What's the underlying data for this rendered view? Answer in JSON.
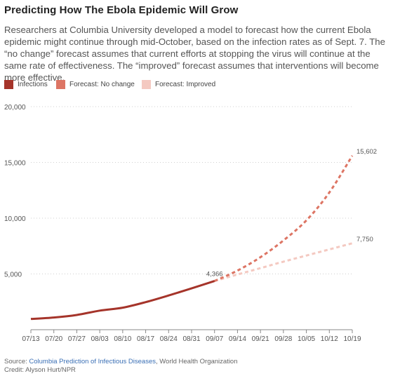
{
  "title": "Predicting How The Ebola Epidemic Will Grow",
  "subtitle": "Researchers at Columbia University developed a model to forecast how the current Ebola epidemic might continue through mid-October, based on the infection rates as of Sept. 7. The “no change” forecast assumes that current efforts at stopping the virus will continue at the same rate of effectiveness. The “improved” forecast assumes that interventions will become more effective.",
  "legend": [
    {
      "label": "Infections",
      "color": "#a5342a"
    },
    {
      "label": "Forecast: No change",
      "color": "#dd7564"
    },
    {
      "label": "Forecast: Improved",
      "color": "#f4c9c1"
    }
  ],
  "footer": {
    "source_prefix": "Source: ",
    "source_link": "Columbia Prediction of Infectious Diseases",
    "source_suffix": ", World Health Organization",
    "credit": "Credit: Alyson Hurt/NPR"
  },
  "chart_data": {
    "type": "line",
    "title": "",
    "xlabel": "",
    "ylabel": "",
    "categories": [
      "07/13",
      "07/20",
      "07/27",
      "08/03",
      "08/10",
      "08/17",
      "08/24",
      "08/31",
      "09/07",
      "09/14",
      "09/21",
      "09/28",
      "10/05",
      "10/12",
      "10/19"
    ],
    "ylim": [
      0,
      20000
    ],
    "yticks": [
      0,
      5000,
      10000,
      15000,
      20000
    ],
    "ytick_labels": [
      "",
      "5,000",
      "10,000",
      "15,000",
      "20,000"
    ],
    "grid": true,
    "series": [
      {
        "name": "Infections",
        "style": "solid",
        "color": "#a5342a",
        "x": [
          "07/13",
          "07/20",
          "07/27",
          "08/03",
          "08/10",
          "08/17",
          "08/24",
          "08/31",
          "09/07"
        ],
        "values": [
          964,
          1093,
          1323,
          1711,
          1975,
          2473,
          3069,
          3707,
          4366
        ]
      },
      {
        "name": "Forecast: No change",
        "style": "dashed",
        "color": "#dd7564",
        "x": [
          "09/07",
          "09/14",
          "09/21",
          "09/28",
          "10/05",
          "10/12",
          "10/19"
        ],
        "values": [
          4366,
          5300,
          6500,
          8000,
          9800,
          12300,
          15602
        ]
      },
      {
        "name": "Forecast: Improved",
        "style": "dashed",
        "color": "#f4c9c1",
        "x": [
          "09/07",
          "09/14",
          "09/21",
          "09/28",
          "10/05",
          "10/12",
          "10/19"
        ],
        "values": [
          4366,
          4950,
          5520,
          6100,
          6650,
          7200,
          7750
        ]
      }
    ],
    "annotations": [
      {
        "text": "4,366",
        "x": "09/07",
        "y": 4366
      },
      {
        "text": "15,602",
        "x": "10/19",
        "y": 15602
      },
      {
        "text": "7,750",
        "x": "10/19",
        "y": 7750
      }
    ]
  }
}
